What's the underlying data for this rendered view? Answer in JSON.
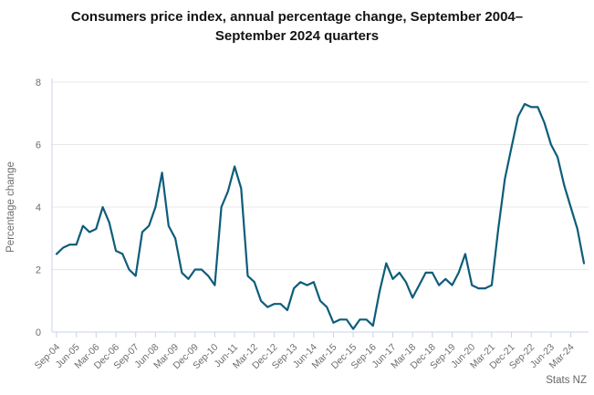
{
  "title": "Consumers price index, annual percentage change, September 2004–September 2024 quarters",
  "attribution": "Stats NZ",
  "colors": {
    "line": "#0d5d7a",
    "grid": "#e8e8e8",
    "axis": "#c9d3ee",
    "tick_text": "#6d6d6d",
    "title_text": "#141414",
    "attribution_text": "#666666",
    "background": "#ffffff"
  },
  "chart_data": {
    "type": "line",
    "title": "Consumers price index, annual percentage change, September 2004–September 2024 quarters",
    "xlabel": "",
    "ylabel": "Percentage change",
    "ylim": [
      0,
      8
    ],
    "yticks": [
      0,
      2,
      4,
      6,
      8
    ],
    "grid": "horizontal",
    "legend_position": "none",
    "x_tick_every": 3,
    "x_tick_labels": [
      "Sep-04",
      "Jun-05",
      "Mar-06",
      "Dec-06",
      "Sep-07",
      "Jun-08",
      "Mar-09",
      "Dec-09",
      "Sep-10",
      "Jun-11",
      "Mar-12",
      "Dec-12",
      "Sep-13",
      "Jun-14",
      "Mar-15",
      "Dec-15",
      "Sep-16",
      "Jun-17",
      "Mar-18",
      "Dec-18",
      "Sep-19",
      "Jun-20",
      "Mar-21",
      "Dec-21",
      "Sep-22",
      "Jun-23",
      "Mar-24"
    ],
    "series": [
      {
        "name": "CPI annual percentage change",
        "values": [
          2.5,
          2.7,
          2.8,
          2.8,
          3.4,
          3.2,
          3.3,
          4.0,
          3.5,
          2.6,
          2.5,
          2.0,
          1.8,
          3.2,
          3.4,
          4.0,
          5.1,
          3.4,
          3.0,
          1.9,
          1.7,
          2.0,
          2.0,
          1.8,
          1.5,
          4.0,
          4.5,
          5.3,
          4.6,
          1.8,
          1.6,
          1.0,
          0.8,
          0.9,
          0.9,
          0.7,
          1.4,
          1.6,
          1.5,
          1.6,
          1.0,
          0.8,
          0.3,
          0.4,
          0.4,
          0.1,
          0.4,
          0.4,
          0.2,
          1.3,
          2.2,
          1.7,
          1.9,
          1.6,
          1.1,
          1.5,
          1.9,
          1.9,
          1.5,
          1.7,
          1.5,
          1.9,
          2.5,
          1.5,
          1.4,
          1.4,
          1.5,
          3.3,
          4.9,
          5.9,
          6.9,
          7.3,
          7.2,
          7.2,
          6.7,
          6.0,
          5.6,
          4.7,
          4.0,
          3.3,
          2.2
        ]
      }
    ]
  }
}
